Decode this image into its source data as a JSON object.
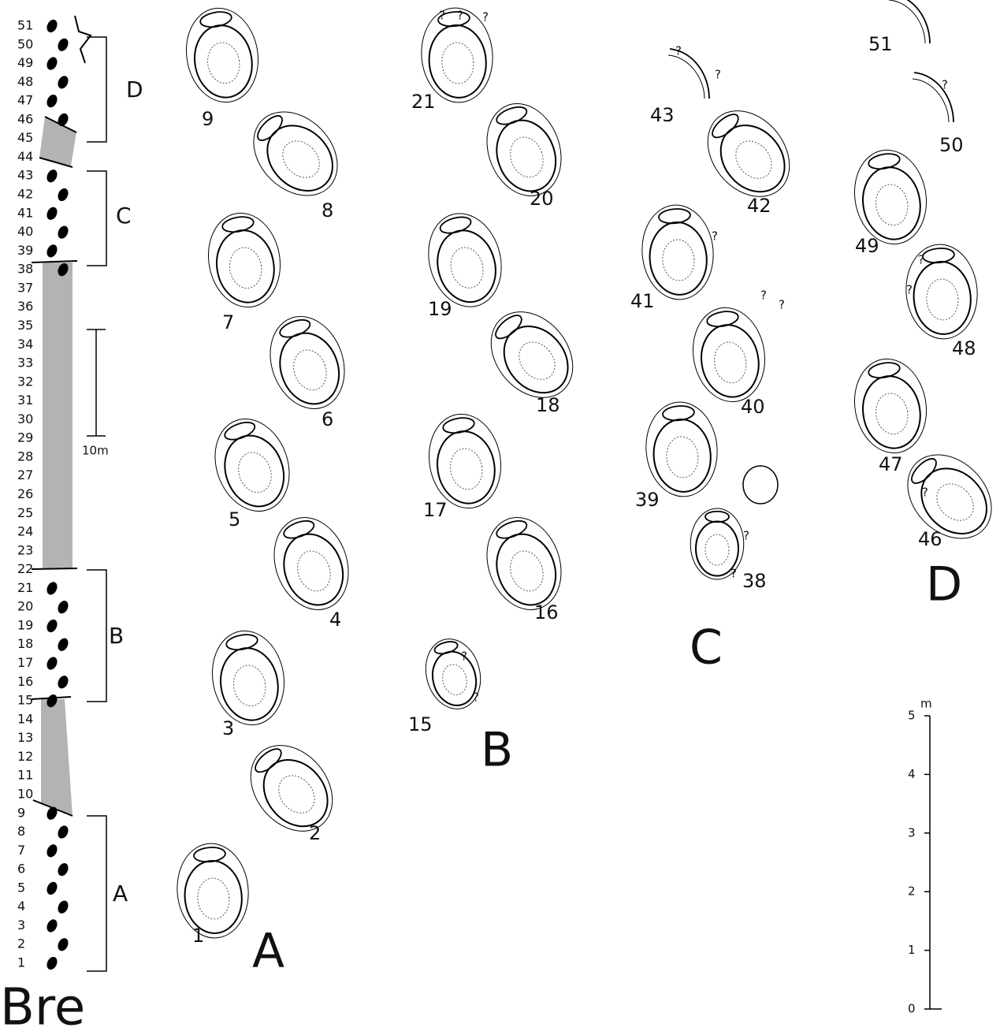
{
  "column": {
    "title": "Bre",
    "track_numbers": [
      "1",
      "2",
      "3",
      "4",
      "5",
      "6",
      "7",
      "8",
      "9",
      "10",
      "11",
      "12",
      "13",
      "14",
      "15",
      "16",
      "17",
      "18",
      "19",
      "20",
      "21",
      "22",
      "23",
      "24",
      "25",
      "26",
      "27",
      "28",
      "29",
      "30",
      "31",
      "32",
      "33",
      "34",
      "35",
      "36",
      "37",
      "38",
      "39",
      "40",
      "41",
      "42",
      "43",
      "44",
      "45",
      "46",
      "47",
      "48",
      "49",
      "50",
      "51"
    ],
    "groups": [
      "A",
      "B",
      "C",
      "D"
    ],
    "scale_label": "10m"
  },
  "trackways": [
    {
      "label": "A",
      "prints": [
        "1",
        "2",
        "3",
        "4",
        "5",
        "6",
        "7",
        "8",
        "9"
      ]
    },
    {
      "label": "B",
      "prints": [
        "15",
        "16",
        "17",
        "18",
        "19",
        "20",
        "21"
      ]
    },
    {
      "label": "C",
      "prints": [
        "38",
        "39",
        "40",
        "41",
        "42",
        "43"
      ]
    },
    {
      "label": "D",
      "prints": [
        "46",
        "47",
        "48",
        "49",
        "50",
        "51"
      ]
    }
  ],
  "uncertain_mark": "?",
  "scale_bar": {
    "unit": "m",
    "ticks": [
      "0",
      "1",
      "2",
      "3",
      "4",
      "5"
    ]
  }
}
